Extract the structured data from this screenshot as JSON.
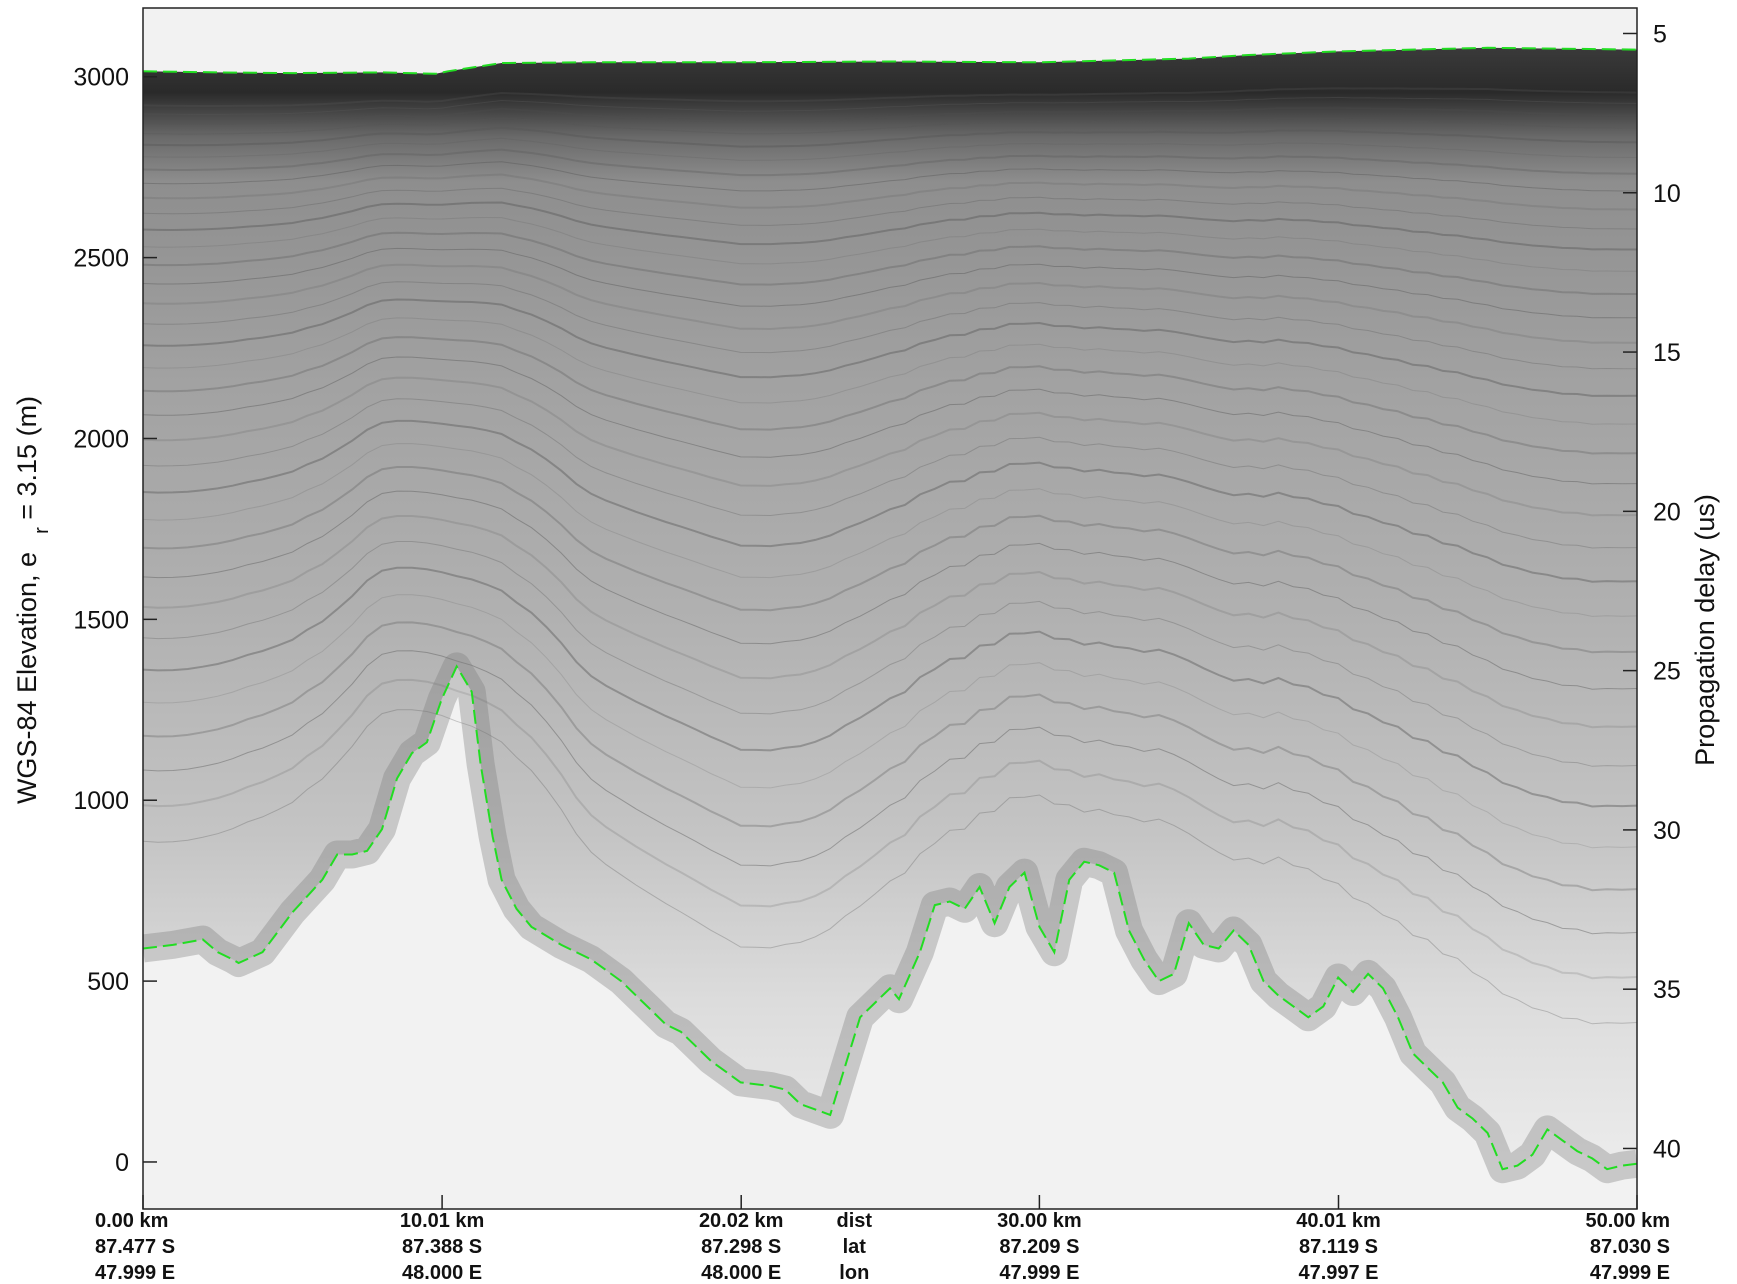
{
  "chart_data": {
    "type": "radargram",
    "title": "",
    "ylabel_left": {
      "main": "WGS-84 Elevation, e",
      "sub": "r",
      "tail": " = 3.15 (m)"
    },
    "ylabel_right": "Propagation delay (us)",
    "ylim_left": [
      -130,
      3190
    ],
    "ylim_right": [
      4.2,
      41.9
    ],
    "yticks_left": [
      0,
      500,
      1000,
      1500,
      2000,
      2500,
      3000
    ],
    "yticks_right": [
      5,
      10,
      15,
      20,
      25,
      30,
      35,
      40
    ],
    "xlim_km": [
      0,
      50
    ],
    "x_axis_rows": {
      "labels": [
        "dist",
        "lat",
        "lon"
      ],
      "ticks": [
        {
          "km": 0.0,
          "dist": "0.00 km",
          "lat": "87.477 S",
          "lon": "47.999 E"
        },
        {
          "km": 10.01,
          "dist": "10.01 km",
          "lat": "87.388 S",
          "lon": "48.000 E"
        },
        {
          "km": 20.02,
          "dist": "20.02 km",
          "lat": "87.298 S",
          "lon": "48.000 E"
        },
        {
          "km": 30.0,
          "dist": "30.00 km",
          "lat": "87.209 S",
          "lon": "47.999 E"
        },
        {
          "km": 40.01,
          "dist": "40.01 km",
          "lat": "87.119 S",
          "lon": "47.997 E"
        },
        {
          "km": 50.0,
          "dist": "50.00 km",
          "lat": "87.030 S",
          "lon": "47.999 E"
        }
      ]
    },
    "series": [
      {
        "role": "surface",
        "color": "#22dd22",
        "style": "dashed",
        "x_km": [
          0,
          2.5,
          5,
          8,
          9.8,
          10.2,
          12,
          15,
          20,
          25,
          30,
          35,
          37,
          40,
          45,
          50
        ],
        "y_m": [
          3015,
          3012,
          3010,
          3012,
          3008,
          3015,
          3038,
          3040,
          3040,
          3042,
          3040,
          3050,
          3060,
          3070,
          3080,
          3075
        ]
      },
      {
        "role": "bed",
        "color": "#22dd22",
        "style": "dashed",
        "x_km": [
          0,
          1,
          2,
          2.5,
          3,
          3.2,
          4,
          5,
          6,
          6.5,
          7,
          7.5,
          8,
          8.5,
          9,
          9.5,
          10,
          10.5,
          11,
          11.3,
          11.7,
          12,
          12.5,
          13,
          14,
          15,
          16,
          17,
          17.5,
          18,
          18.5,
          19,
          20,
          21,
          21.5,
          22,
          23,
          24,
          25,
          25.3,
          26,
          26.5,
          27,
          27.5,
          28,
          28.5,
          29,
          29.5,
          30,
          30.5,
          31,
          31.5,
          32,
          32.5,
          33,
          33.5,
          34,
          34.5,
          35,
          35.5,
          36,
          36.5,
          37,
          37.5,
          38,
          38.5,
          39,
          39.5,
          40,
          40.5,
          41,
          41.5,
          42,
          42.5,
          43,
          43.5,
          44,
          44.5,
          45,
          45.5,
          46,
          46.5,
          47,
          47.5,
          48,
          48.5,
          49,
          49.5,
          50
        ],
        "y_m": [
          590,
          600,
          615,
          580,
          560,
          550,
          580,
          690,
          780,
          850,
          850,
          860,
          920,
          1060,
          1130,
          1160,
          1280,
          1370,
          1300,
          1100,
          900,
          780,
          700,
          650,
          600,
          560,
          500,
          420,
          380,
          360,
          320,
          280,
          220,
          210,
          200,
          160,
          130,
          400,
          480,
          450,
          580,
          710,
          720,
          700,
          760,
          660,
          760,
          800,
          650,
          580,
          780,
          830,
          820,
          800,
          640,
          560,
          500,
          520,
          660,
          600,
          590,
          640,
          600,
          500,
          460,
          430,
          400,
          430,
          510,
          470,
          520,
          480,
          400,
          300,
          260,
          220,
          150,
          120,
          80,
          -20,
          -10,
          20,
          90,
          60,
          30,
          10,
          -20,
          -10,
          -5
        ]
      }
    ]
  }
}
